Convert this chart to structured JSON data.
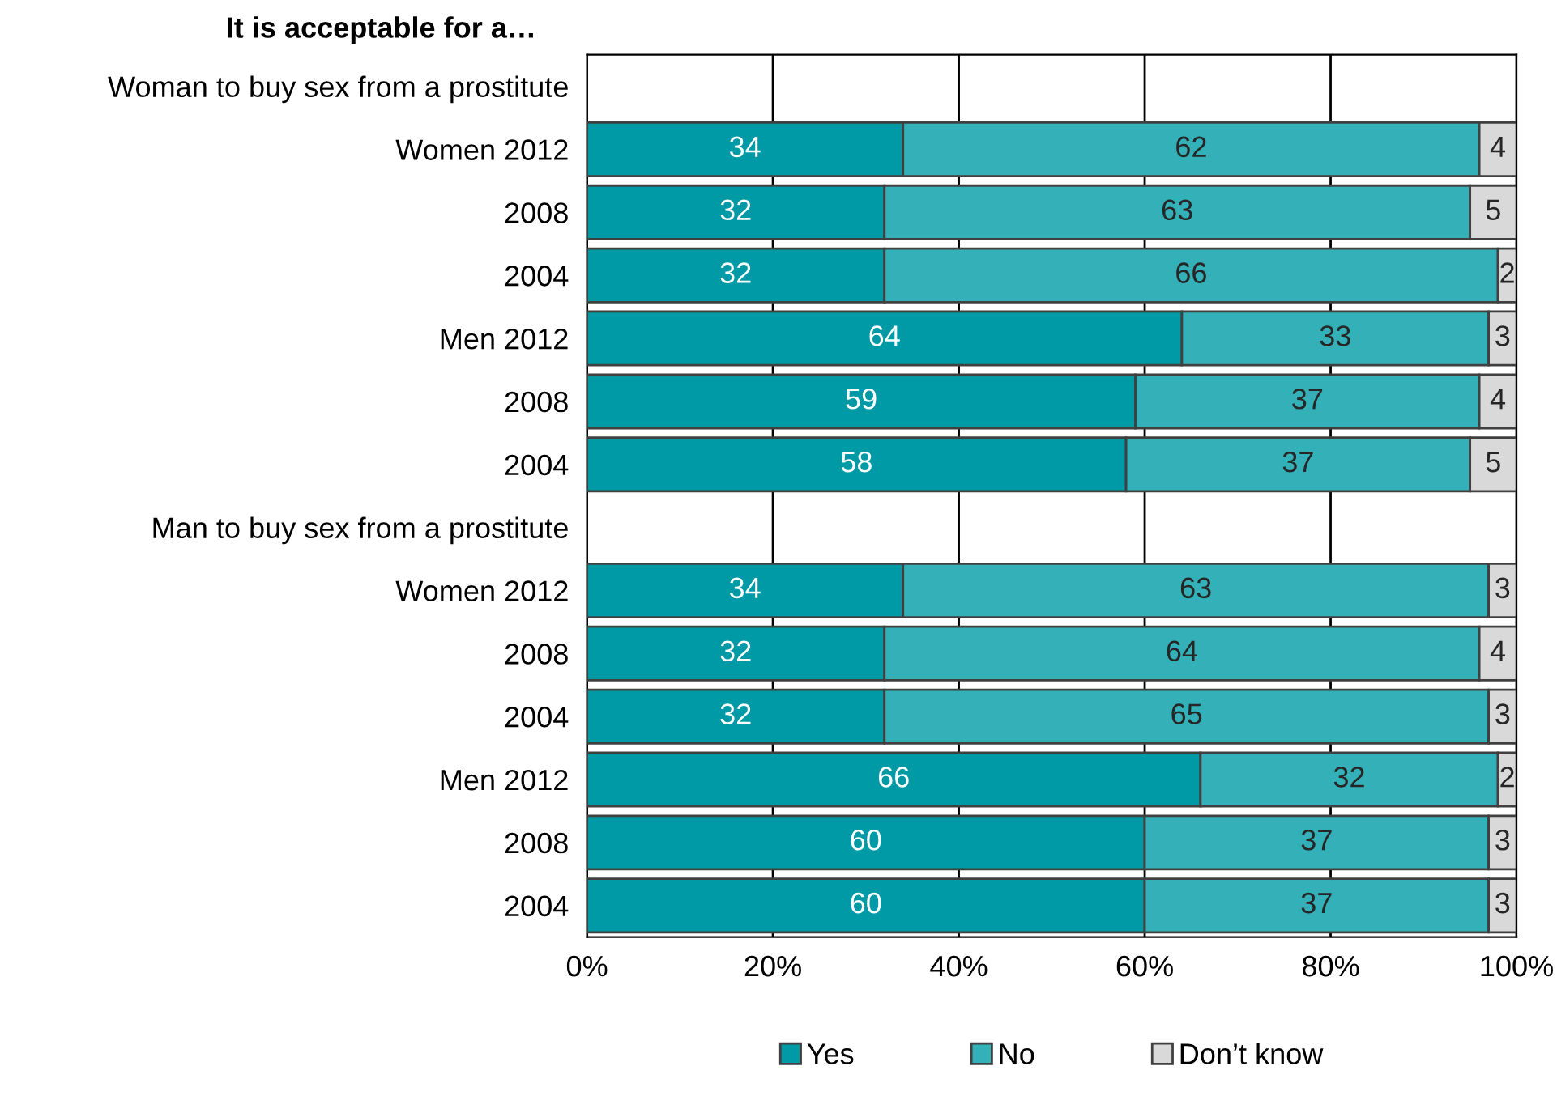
{
  "chart_data": {
    "type": "bar",
    "orientation": "horizontal",
    "stacked": true,
    "title": "It is acceptable for a…",
    "categories": [
      "Woman to buy sex from a prostitute",
      "Women 2012",
      "2008",
      "2004",
      "Men 2012",
      "2008",
      "2004",
      "Man to buy sex from a prostitute",
      "Women 2012",
      "2008",
      "2004",
      "Men 2012",
      "2008",
      "2004"
    ],
    "series": [
      {
        "name": "Yes",
        "color": "#0099a6",
        "values": [
          null,
          34,
          32,
          32,
          64,
          59,
          58,
          null,
          34,
          32,
          32,
          66,
          60,
          60
        ]
      },
      {
        "name": "No",
        "color": "#33b0b8",
        "values": [
          null,
          62,
          63,
          66,
          33,
          37,
          37,
          null,
          63,
          64,
          65,
          32,
          37,
          37
        ]
      },
      {
        "name": "Don’t know",
        "color": "#d9d9d9",
        "values": [
          null,
          4,
          5,
          2,
          3,
          4,
          5,
          null,
          3,
          4,
          3,
          2,
          3,
          3
        ]
      }
    ],
    "xlim": [
      0,
      100
    ],
    "xticks": [
      {
        "value": 0,
        "label": "0%"
      },
      {
        "value": 20,
        "label": "20%"
      },
      {
        "value": 40,
        "label": "40%"
      },
      {
        "value": 60,
        "label": "60%"
      },
      {
        "value": 80,
        "label": "80%"
      },
      {
        "value": 100,
        "label": "100%"
      }
    ],
    "grid": "x",
    "legend": "bottom",
    "data_labels": true
  }
}
